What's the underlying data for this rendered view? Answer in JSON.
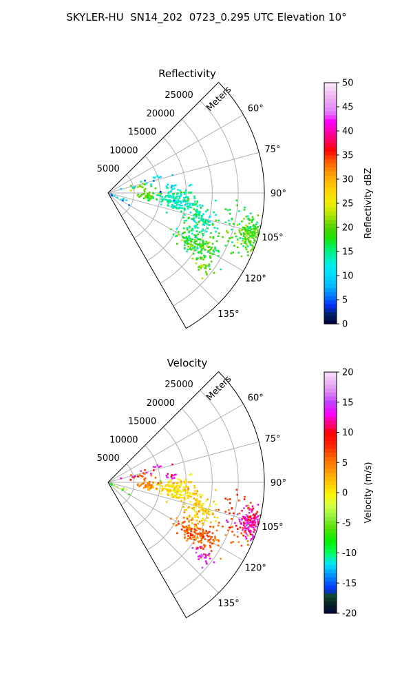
{
  "title": "SKYLER-HU  SN14_202  0723_0.295 UTC Elevation 10°",
  "chart_data": [
    {
      "type": "scatter",
      "subtype": "polar-sector (PPI)",
      "title": "Reflectivity",
      "range_label": "Meters",
      "range_ticks": [
        5000,
        10000,
        15000,
        20000,
        25000
      ],
      "range_max": 30000,
      "azimuth_min": 45,
      "azimuth_max": 150,
      "azimuth_ticks": [
        60,
        75,
        90,
        105,
        120,
        135
      ],
      "azimuth_tick_labels": [
        "60°",
        "75°",
        "90°",
        "105°",
        "120°",
        "135°"
      ],
      "grid": true,
      "colorbar": {
        "label": "Reflectivity dBZ",
        "min": 0,
        "max": 50,
        "ticks": [
          0,
          5,
          10,
          15,
          20,
          25,
          30,
          35,
          40,
          45,
          50
        ]
      },
      "clusters": [
        {
          "azimuth": 96,
          "azimuth_spread": 4.5,
          "range": 13500,
          "range_spread": 2200,
          "count": 150,
          "value": 14,
          "value_spread": 2.5
        },
        {
          "azimuth": 107,
          "azimuth_spread": 4.5,
          "range": 18500,
          "range_spread": 1500,
          "count": 110,
          "value": 14,
          "value_spread": 2.5
        },
        {
          "azimuth": 120,
          "azimuth_spread": 3.0,
          "range": 20000,
          "range_spread": 2200,
          "count": 160,
          "value": 18,
          "value_spread": 2.5
        },
        {
          "azimuth": 106,
          "azimuth_spread": 2.5,
          "range": 28500,
          "range_spread": 1800,
          "count": 180,
          "value": 19,
          "value_spread": 2.5
        },
        {
          "azimuth": 95,
          "azimuth_spread": 3.0,
          "range": 8000,
          "range_spread": 1000,
          "count": 40,
          "value": 19,
          "value_spread": 2
        },
        {
          "azimuth": 80,
          "azimuth_spread": 4.0,
          "range": 6500,
          "range_spread": 1200,
          "count": 18,
          "value": 20,
          "value_spread": 2
        },
        {
          "azimuth": 72,
          "azimuth_spread": 4.0,
          "range": 9500,
          "range_spread": 2500,
          "count": 14,
          "value": 11,
          "value_spread": 2
        },
        {
          "azimuth": 84,
          "azimuth_spread": 2.0,
          "range": 12000,
          "range_spread": 800,
          "count": 12,
          "value": 12,
          "value_spread": 2
        },
        {
          "azimuth": 128,
          "azimuth_spread": 2.0,
          "range": 22500,
          "range_spread": 1500,
          "count": 25,
          "value": 21,
          "value_spread": 2
        },
        {
          "azimuth": 113,
          "azimuth_spread": 2.0,
          "range": 26000,
          "range_spread": 2500,
          "count": 20,
          "value": 19,
          "value_spread": 2
        },
        {
          "azimuth": 100,
          "azimuth_spread": 2.5,
          "range": 25000,
          "range_spread": 2000,
          "count": 20,
          "value": 16,
          "value_spread": 2
        },
        {
          "azimuth": 116,
          "azimuth_spread": 4.5,
          "range": 3000,
          "range_spread": 1500,
          "count": 10,
          "value": 8,
          "value_spread": 3
        }
      ]
    },
    {
      "type": "scatter",
      "subtype": "polar-sector (PPI)",
      "title": "Velocity",
      "range_label": "Meters",
      "range_ticks": [
        5000,
        10000,
        15000,
        20000,
        25000
      ],
      "range_max": 30000,
      "azimuth_min": 45,
      "azimuth_max": 150,
      "azimuth_ticks": [
        60,
        75,
        90,
        105,
        120,
        135
      ],
      "azimuth_tick_labels": [
        "60°",
        "75°",
        "90°",
        "105°",
        "120°",
        "135°"
      ],
      "grid": true,
      "colorbar": {
        "label": "Velocity (m/s)",
        "min": -20,
        "max": 20,
        "ticks": [
          -20,
          -15,
          -10,
          -5,
          0,
          5,
          10,
          15,
          20
        ]
      },
      "clusters": [
        {
          "azimuth": 96,
          "azimuth_spread": 4.5,
          "range": 13500,
          "range_spread": 2200,
          "count": 150,
          "value": 1,
          "value_spread": 1.5
        },
        {
          "azimuth": 107,
          "azimuth_spread": 4.5,
          "range": 18500,
          "range_spread": 1500,
          "count": 110,
          "value": 1,
          "value_spread": 1.5
        },
        {
          "azimuth": 120,
          "azimuth_spread": 3.0,
          "range": 20000,
          "range_spread": 2200,
          "count": 160,
          "value": 6,
          "value_spread": 1.5
        },
        {
          "azimuth": 106,
          "azimuth_spread": 2.5,
          "range": 28500,
          "range_spread": 1800,
          "count": 180,
          "value": 12,
          "value_spread": 2.5
        },
        {
          "azimuth": 95,
          "azimuth_spread": 3.0,
          "range": 8000,
          "range_spread": 1000,
          "count": 40,
          "value": 4,
          "value_spread": 1.5
        },
        {
          "azimuth": 80,
          "azimuth_spread": 4.0,
          "range": 6500,
          "range_spread": 1200,
          "count": 18,
          "value": 6,
          "value_spread": 1
        },
        {
          "azimuth": 72,
          "azimuth_spread": 4.0,
          "range": 9500,
          "range_spread": 2500,
          "count": 14,
          "value": 13,
          "value_spread": 1.5
        },
        {
          "azimuth": 84,
          "azimuth_spread": 2.0,
          "range": 12000,
          "range_spread": 800,
          "count": 12,
          "value": 13,
          "value_spread": 1.5
        },
        {
          "azimuth": 128,
          "azimuth_spread": 2.0,
          "range": 22500,
          "range_spread": 1500,
          "count": 25,
          "value": 14,
          "value_spread": 1.5
        },
        {
          "azimuth": 113,
          "azimuth_spread": 2.0,
          "range": 26000,
          "range_spread": 2500,
          "count": 20,
          "value": 6,
          "value_spread": 1.5
        },
        {
          "azimuth": 100,
          "azimuth_spread": 2.5,
          "range": 25000,
          "range_spread": 2000,
          "count": 20,
          "value": 7,
          "value_spread": 1.5
        },
        {
          "azimuth": 116,
          "azimuth_spread": 4.5,
          "range": 3000,
          "range_spread": 1500,
          "count": 10,
          "value": -5,
          "value_spread": 3
        }
      ]
    }
  ]
}
